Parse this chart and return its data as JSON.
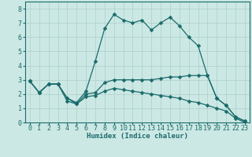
{
  "xlabel": "Humidex (Indice chaleur)",
  "bg_color": "#cce8e4",
  "grid_color": "#aacfca",
  "line_color": "#1a6b6b",
  "xlim": [
    -0.5,
    23.5
  ],
  "ylim": [
    0,
    8.5
  ],
  "xticks": [
    0,
    1,
    2,
    3,
    4,
    5,
    6,
    7,
    8,
    9,
    10,
    11,
    12,
    13,
    14,
    15,
    16,
    17,
    18,
    19,
    20,
    21,
    22,
    23
  ],
  "yticks": [
    0,
    1,
    2,
    3,
    4,
    5,
    6,
    7,
    8
  ],
  "line1_x": [
    0,
    1,
    2,
    3,
    4,
    5,
    6,
    7,
    8,
    9,
    10,
    11,
    12,
    13,
    14,
    15,
    16,
    17,
    18,
    19,
    20,
    21,
    22,
    23
  ],
  "line1_y": [
    2.9,
    2.1,
    2.7,
    2.7,
    1.7,
    1.4,
    2.2,
    4.3,
    6.6,
    7.6,
    7.2,
    7.0,
    7.2,
    6.5,
    7.0,
    7.4,
    6.8,
    6.0,
    5.4,
    3.3,
    1.7,
    1.2,
    0.4,
    0.1
  ],
  "line2_x": [
    0,
    1,
    2,
    3,
    4,
    5,
    6,
    7,
    8,
    9,
    10,
    11,
    12,
    13,
    14,
    15,
    16,
    17,
    18,
    19,
    20,
    21,
    22,
    23
  ],
  "line2_y": [
    2.9,
    2.1,
    2.7,
    2.7,
    1.7,
    1.3,
    2.0,
    2.1,
    2.8,
    3.0,
    3.0,
    3.0,
    3.0,
    3.0,
    3.1,
    3.2,
    3.2,
    3.3,
    3.3,
    3.3,
    1.7,
    1.2,
    0.4,
    0.1
  ],
  "line3_x": [
    0,
    1,
    2,
    3,
    4,
    5,
    6,
    7,
    8,
    9,
    10,
    11,
    12,
    13,
    14,
    15,
    16,
    17,
    18,
    19,
    20,
    21,
    22,
    23
  ],
  "line3_y": [
    2.9,
    2.1,
    2.7,
    2.7,
    1.5,
    1.3,
    1.8,
    1.9,
    2.2,
    2.4,
    2.3,
    2.2,
    2.1,
    2.0,
    1.9,
    1.8,
    1.7,
    1.5,
    1.4,
    1.2,
    1.0,
    0.8,
    0.3,
    0.0
  ],
  "xlabel_fontsize": 6.5,
  "tick_fontsize": 6.0,
  "marker_size": 2.5,
  "line_width": 0.9
}
